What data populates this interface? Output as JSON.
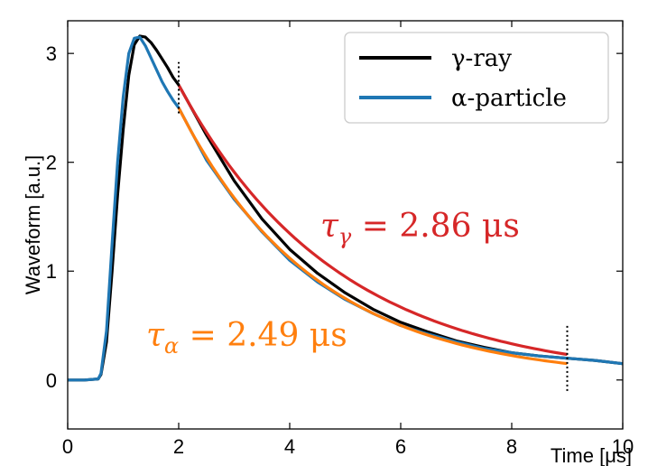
{
  "chart_data": {
    "type": "line",
    "title": "",
    "xlabel": "Time [μs]",
    "ylabel": "Waveform [a.u.]",
    "xlim": [
      0,
      10
    ],
    "ylim": [
      -0.45,
      3.3
    ],
    "xticks": [
      0,
      2,
      4,
      6,
      8,
      10
    ],
    "yticks": [
      0,
      1,
      2,
      3
    ],
    "grid": false,
    "legend_position": "top-right",
    "legend": [
      {
        "label": "γ-ray",
        "color": "#000000"
      },
      {
        "label": "α-particle",
        "color": "#1f77b4"
      }
    ],
    "series": [
      {
        "name": "γ-ray",
        "color": "#000000",
        "x": [
          0.0,
          0.3,
          0.55,
          0.6,
          0.7,
          0.8,
          0.9,
          1.0,
          1.1,
          1.2,
          1.3,
          1.4,
          1.5,
          1.6,
          1.7,
          1.8,
          1.9,
          2.0,
          2.5,
          3.0,
          3.5,
          4.0,
          4.5,
          5.0,
          5.5,
          6.0,
          6.5,
          7.0,
          7.5,
          8.0,
          8.5,
          9.0,
          9.5,
          10.0
        ],
        "values": [
          0.0,
          0.0,
          0.01,
          0.05,
          0.35,
          1.0,
          1.7,
          2.3,
          2.8,
          3.08,
          3.16,
          3.15,
          3.1,
          3.03,
          2.95,
          2.87,
          2.78,
          2.71,
          2.25,
          1.83,
          1.48,
          1.2,
          0.98,
          0.8,
          0.65,
          0.53,
          0.44,
          0.36,
          0.3,
          0.25,
          0.22,
          0.2,
          0.18,
          0.15
        ]
      },
      {
        "name": "α-particle",
        "color": "#1f77b4",
        "x": [
          0.0,
          0.3,
          0.55,
          0.6,
          0.7,
          0.8,
          0.9,
          1.0,
          1.1,
          1.2,
          1.3,
          1.4,
          1.5,
          1.6,
          1.7,
          1.8,
          1.9,
          2.0,
          2.5,
          3.0,
          3.5,
          4.0,
          4.5,
          5.0,
          5.5,
          6.0,
          6.5,
          7.0,
          7.5,
          8.0,
          8.5,
          9.0,
          9.5,
          10.0
        ],
        "values": [
          0.0,
          0.0,
          0.01,
          0.06,
          0.45,
          1.25,
          2.0,
          2.6,
          3.0,
          3.14,
          3.15,
          3.07,
          2.96,
          2.85,
          2.74,
          2.65,
          2.57,
          2.5,
          2.02,
          1.66,
          1.36,
          1.1,
          0.9,
          0.74,
          0.61,
          0.5,
          0.42,
          0.35,
          0.29,
          0.25,
          0.22,
          0.2,
          0.18,
          0.15
        ]
      }
    ],
    "fits": [
      {
        "name": "gamma-fit",
        "color": "#d62728",
        "tau": 2.86,
        "a": 2.71,
        "x_start": 2,
        "x_end": 9
      },
      {
        "name": "alpha-fit",
        "color": "#ff7f0e",
        "tau": 2.49,
        "a": 2.5,
        "x_start": 2,
        "x_end": 9
      }
    ],
    "markers": [
      {
        "x": 2,
        "y_from": 2.45,
        "y_to": 2.92
      },
      {
        "x": 9,
        "y_from": -0.1,
        "y_to": 0.52
      }
    ],
    "annotations": [
      {
        "name": "tau-gamma",
        "prefix": "τ",
        "sub": "γ",
        "text": " = 2.86 μs",
        "color": "#d62728"
      },
      {
        "name": "tau-alpha",
        "prefix": "τ",
        "sub": "α",
        "text": " = 2.49 μs",
        "color": "#ff7f0e"
      }
    ]
  }
}
